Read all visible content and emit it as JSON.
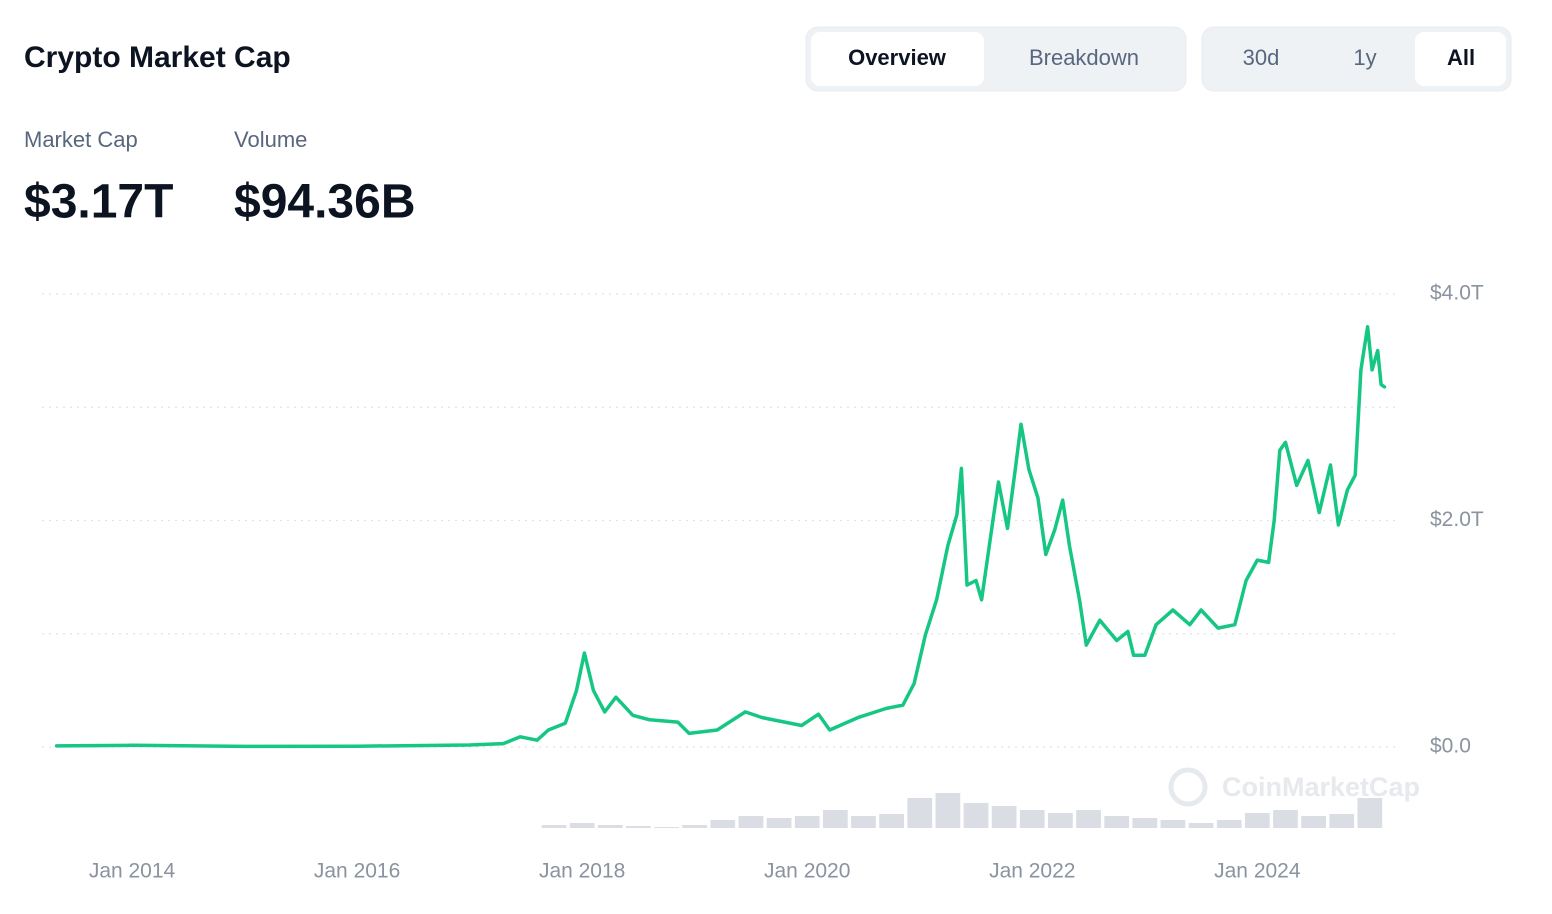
{
  "header": {
    "title": "Crypto Market Cap",
    "tabs": [
      "Overview",
      "Breakdown"
    ],
    "ranges": [
      "30d",
      "1y",
      "All"
    ],
    "stats": [
      {
        "label": "Market Cap",
        "value": "$3.17T"
      },
      {
        "label": "Volume",
        "value": "$94.36B"
      }
    ],
    "watermark": "CoinMarketCap"
  },
  "chart_data": {
    "type": "line",
    "xlim": [
      2013.2,
      2025.25
    ],
    "ylim": [
      0,
      4
    ],
    "y2lim": [
      0,
      400
    ],
    "xticks": [
      {
        "value": 2014,
        "label": "Jan 2014"
      },
      {
        "value": 2016,
        "label": "Jan 2016"
      },
      {
        "value": 2018,
        "label": "Jan 2018"
      },
      {
        "value": 2020,
        "label": "Jan 2020"
      },
      {
        "value": 2022,
        "label": "Jan 2022"
      },
      {
        "value": 2024,
        "label": "Jan 2024"
      }
    ],
    "yticks": [
      {
        "value": 0,
        "label": "$0.0"
      },
      {
        "value": 1,
        "label": null
      },
      {
        "value": 2,
        "label": "$2.0T"
      },
      {
        "value": 3,
        "label": null
      },
      {
        "value": 4,
        "label": "$4.0T"
      }
    ],
    "grid": true,
    "series": [
      {
        "color": "#16c784",
        "x": [
          2013.33,
          2014.0,
          2015.0,
          2016.0,
          2017.0,
          2017.3,
          2017.45,
          2017.6,
          2017.7,
          2017.85,
          2017.95,
          2018.02,
          2018.1,
          2018.2,
          2018.3,
          2018.45,
          2018.6,
          2018.85,
          2018.95,
          2019.2,
          2019.45,
          2019.6,
          2019.8,
          2019.95,
          2020.1,
          2020.2,
          2020.45,
          2020.7,
          2020.85,
          2020.95,
          2021.05,
          2021.15,
          2021.25,
          2021.33,
          2021.37,
          2021.42,
          2021.5,
          2021.55,
          2021.65,
          2021.7,
          2021.78,
          2021.85,
          2021.9,
          2021.97,
          2022.05,
          2022.12,
          2022.2,
          2022.27,
          2022.33,
          2022.42,
          2022.48,
          2022.6,
          2022.75,
          2022.85,
          2022.9,
          2023.0,
          2023.1,
          2023.25,
          2023.4,
          2023.5,
          2023.65,
          2023.8,
          2023.9,
          2024.0,
          2024.1,
          2024.15,
          2024.2,
          2024.25,
          2024.35,
          2024.45,
          2024.55,
          2024.65,
          2024.72,
          2024.8,
          2024.87,
          2024.92,
          2024.98,
          2025.02,
          2025.07,
          2025.1,
          2025.13
        ],
        "values": [
          0.01,
          0.015,
          0.005,
          0.007,
          0.018,
          0.03,
          0.09,
          0.06,
          0.15,
          0.21,
          0.5,
          0.83,
          0.5,
          0.31,
          0.44,
          0.28,
          0.24,
          0.22,
          0.12,
          0.15,
          0.31,
          0.26,
          0.22,
          0.19,
          0.29,
          0.15,
          0.26,
          0.34,
          0.37,
          0.56,
          0.99,
          1.3,
          1.78,
          2.05,
          2.46,
          1.43,
          1.47,
          1.3,
          2.0,
          2.34,
          1.93,
          2.46,
          2.85,
          2.45,
          2.2,
          1.7,
          1.92,
          2.18,
          1.78,
          1.3,
          0.9,
          1.12,
          0.94,
          1.02,
          0.81,
          0.81,
          1.08,
          1.21,
          1.08,
          1.21,
          1.05,
          1.08,
          1.47,
          1.65,
          1.63,
          2.0,
          2.62,
          2.69,
          2.31,
          2.53,
          2.07,
          2.49,
          1.96,
          2.27,
          2.4,
          3.33,
          3.71,
          3.33,
          3.5,
          3.2,
          3.18
        ]
      },
      {
        "type": "bar",
        "axis": "y2",
        "color": "#d3d8df",
        "x": [
          2017.75,
          2018.0,
          2018.25,
          2018.5,
          2018.75,
          2019.0,
          2019.25,
          2019.5,
          2019.75,
          2020.0,
          2020.25,
          2020.5,
          2020.75,
          2021.0,
          2021.25,
          2021.5,
          2021.75,
          2022.0,
          2022.25,
          2022.5,
          2022.75,
          2023.0,
          2023.25,
          2023.5,
          2023.75,
          2024.0,
          2024.25,
          2024.5,
          2024.75,
          2025.0
        ],
        "values": [
          15,
          25,
          15,
          10,
          5,
          15,
          40,
          60,
          50,
          60,
          90,
          60,
          70,
          150,
          175,
          125,
          110,
          90,
          75,
          90,
          60,
          50,
          40,
          25,
          40,
          75,
          90,
          60,
          70,
          150
        ]
      }
    ]
  }
}
